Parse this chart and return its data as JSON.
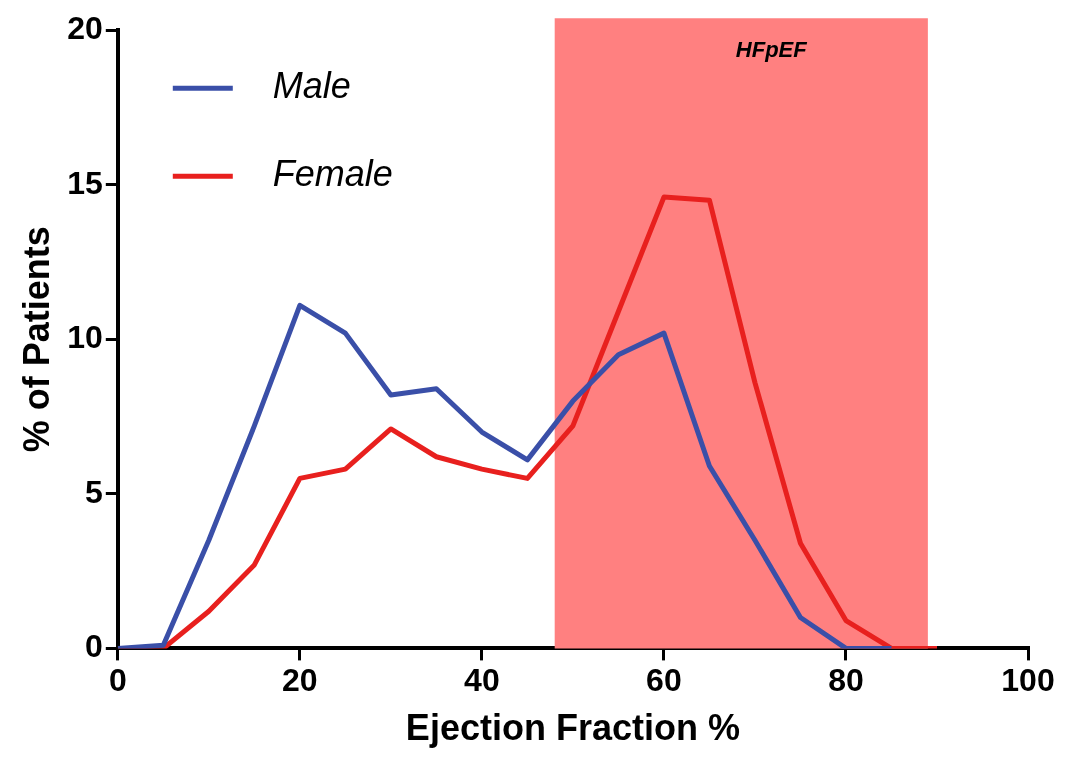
{
  "chart_data": {
    "type": "line",
    "xlabel": "Ejection Fraction %",
    "ylabel": "% of Patients",
    "xlim": [
      0,
      100
    ],
    "xticks": [
      0,
      20,
      40,
      60,
      80,
      100
    ],
    "ylim": [
      0,
      20
    ],
    "yticks": [
      0,
      5,
      10,
      15,
      20
    ],
    "grid": false,
    "legend": "top left",
    "marker": "none",
    "line_style": "solid",
    "series": [
      {
        "name": "Male",
        "color": "#3a4fa8",
        "x": [
          0,
          5,
          10,
          15,
          20,
          25,
          30,
          35,
          40,
          45,
          50,
          55,
          60,
          65,
          70,
          75,
          80,
          85
        ],
        "values": [
          0,
          0.1,
          3.5,
          7.2,
          11.1,
          10.2,
          8.2,
          8.4,
          7.0,
          6.1,
          8.0,
          9.5,
          10.2,
          5.9,
          3.5,
          1.0,
          0,
          0
        ]
      },
      {
        "name": "Female",
        "color": "#e8201e",
        "x": [
          0,
          5,
          10,
          15,
          20,
          25,
          30,
          35,
          40,
          45,
          50,
          55,
          60,
          65,
          70,
          75,
          80,
          85,
          90
        ],
        "values": [
          0,
          0,
          1.2,
          2.7,
          5.5,
          5.8,
          7.1,
          6.2,
          5.8,
          5.5,
          7.2,
          10.9,
          14.6,
          14.5,
          8.6,
          3.4,
          0.9,
          0,
          0
        ]
      }
    ],
    "bands": [
      {
        "axis": "x",
        "from": 48,
        "to": 89,
        "label": "HFpEF",
        "color": "#ff8080"
      }
    ]
  }
}
